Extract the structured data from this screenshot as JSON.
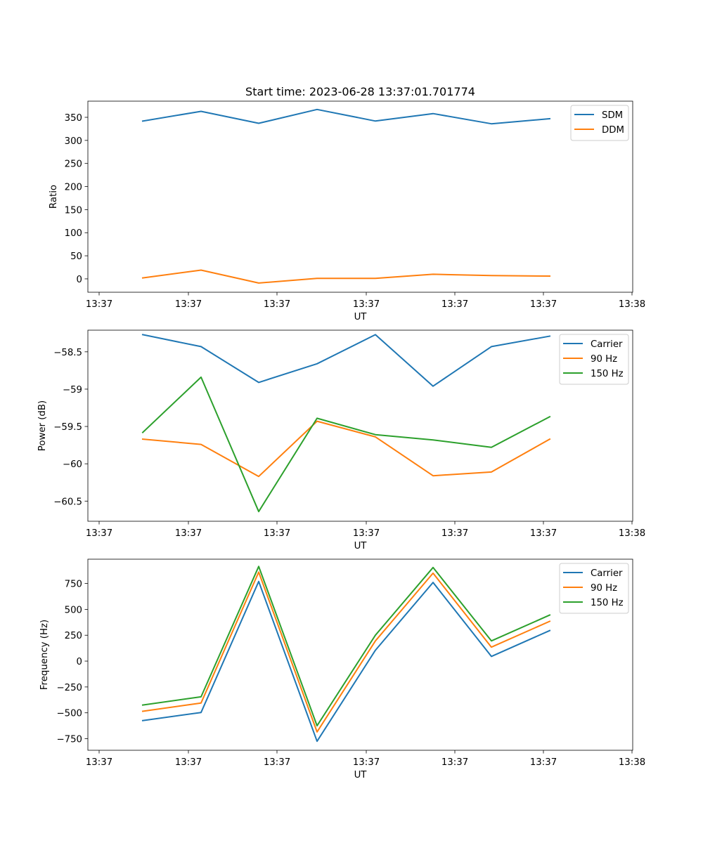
{
  "colors": {
    "blue": "#1f77b4",
    "orange": "#ff7f0e",
    "green": "#2ca02c"
  },
  "chart_data": [
    {
      "type": "line",
      "title": "Start time: 2023-06-28 13:37:01.701774",
      "xlabel": "UT",
      "ylabel": "Ratio",
      "x_ticks": [
        "13:37",
        "13:37",
        "13:37",
        "13:37",
        "13:37",
        "13:37",
        "13:38"
      ],
      "y_ticks": [
        0,
        50,
        100,
        150,
        200,
        250,
        300,
        350
      ],
      "ylim": [
        -29,
        385
      ],
      "grid": false,
      "legend_position": "top-right",
      "series": [
        {
          "name": "SDM",
          "color": "#1f77b4",
          "values": [
            342,
            363,
            337,
            367,
            342,
            358,
            336,
            347
          ]
        },
        {
          "name": "DDM",
          "color": "#ff7f0e",
          "values": [
            2,
            19,
            -9,
            1,
            1,
            10,
            7,
            6
          ]
        }
      ]
    },
    {
      "type": "line",
      "title": "",
      "xlabel": "UT",
      "ylabel": "Power (dB)",
      "x_ticks": [
        "13:37",
        "13:37",
        "13:37",
        "13:37",
        "13:37",
        "13:37",
        "13:38"
      ],
      "y_ticks": [
        -58.5,
        -59.0,
        -59.5,
        -60.0,
        -60.5
      ],
      "ylim": [
        -60.77,
        -58.21
      ],
      "grid": false,
      "legend_position": "top-right",
      "series": [
        {
          "name": "Carrier",
          "color": "#1f77b4",
          "values": [
            -58.27,
            -58.43,
            -58.91,
            -58.66,
            -58.27,
            -58.96,
            -58.43,
            -58.29
          ]
        },
        {
          "name": "90 Hz",
          "color": "#ff7f0e",
          "values": [
            -59.67,
            -59.74,
            -60.17,
            -59.43,
            -59.64,
            -60.16,
            -60.11,
            -59.67
          ]
        },
        {
          "name": "150 Hz",
          "color": "#2ca02c",
          "values": [
            -59.58,
            -58.84,
            -60.64,
            -59.39,
            -59.61,
            -59.68,
            -59.78,
            -59.37
          ]
        }
      ]
    },
    {
      "type": "line",
      "title": "",
      "xlabel": "UT",
      "ylabel": "Frequency (Hz)",
      "x_ticks": [
        "13:37",
        "13:37",
        "13:37",
        "13:37",
        "13:37",
        "13:37",
        "13:38"
      ],
      "y_ticks": [
        750,
        500,
        250,
        0,
        -250,
        -500,
        -750
      ],
      "ylim": [
        -862,
        985
      ],
      "grid": false,
      "legend_position": "top-right",
      "series": [
        {
          "name": "Carrier",
          "color": "#1f77b4",
          "values": [
            -575,
            -497,
            770,
            -775,
            105,
            760,
            45,
            295
          ]
        },
        {
          "name": "90 Hz",
          "color": "#ff7f0e",
          "values": [
            -485,
            -405,
            860,
            -685,
            195,
            850,
            135,
            385
          ]
        },
        {
          "name": "150 Hz",
          "color": "#2ca02c",
          "values": [
            -425,
            -345,
            915,
            -625,
            250,
            905,
            195,
            445
          ]
        }
      ]
    }
  ]
}
